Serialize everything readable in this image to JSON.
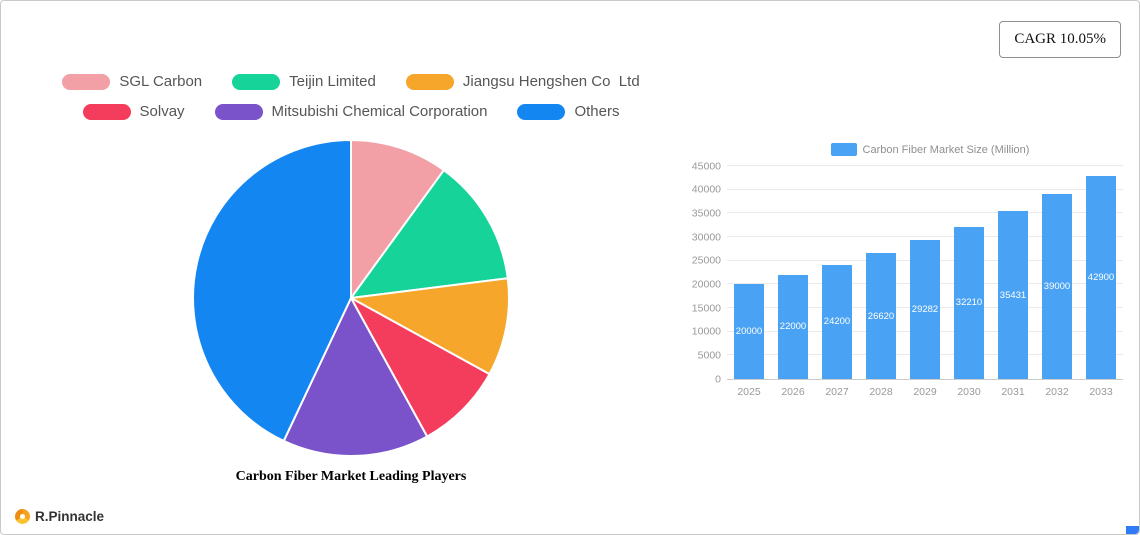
{
  "cagr": {
    "label": "CAGR 10.05%"
  },
  "branding": {
    "logo_text": "R.Pinnacle",
    "logo_color": "#f5a623"
  },
  "chart_data": [
    {
      "type": "pie",
      "title": "Carbon Fiber Market Leading Players",
      "legend_position": "top",
      "slices": [
        {
          "label": "SGL Carbon",
          "value": 10,
          "color": "#F2A0A6"
        },
        {
          "label": "Teijin Limited",
          "value": 13,
          "color": "#16D39A"
        },
        {
          "label": "Jiangsu Hengshen Co  Ltd",
          "value": 10,
          "color": "#F5A62B"
        },
        {
          "label": "Solvay",
          "value": 9,
          "color": "#F43D5D"
        },
        {
          "label": "Mitsubishi Chemical Corporation",
          "value": 15,
          "color": "#7A52C9"
        },
        {
          "label": "Others",
          "value": 43,
          "color": "#1486F2"
        }
      ]
    },
    {
      "type": "bar",
      "legend": "Carbon Fiber Market Size (Million)",
      "bar_color": "#4AA2F4",
      "categories": [
        "2025",
        "2026",
        "2027",
        "2028",
        "2029",
        "2030",
        "2031",
        "2032",
        "2033"
      ],
      "values": [
        20000,
        22000,
        24200,
        26620,
        29282,
        32210,
        35431,
        39000,
        42900
      ],
      "ylim": [
        0,
        45000
      ],
      "ytick_step": 5000,
      "grid": true,
      "legend_position": "top"
    }
  ]
}
